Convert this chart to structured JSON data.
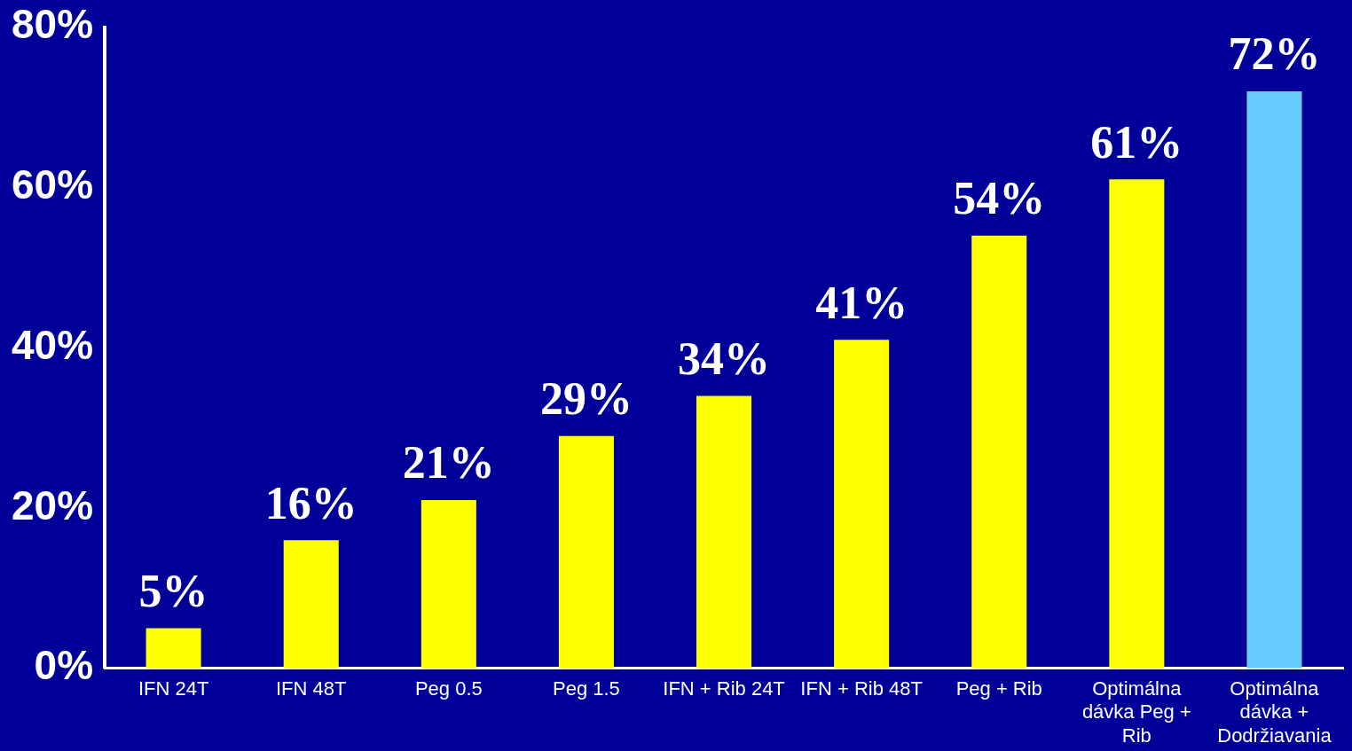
{
  "chart_data": {
    "type": "bar",
    "categories": [
      "IFN 24T",
      "IFN 48T",
      "Peg 0.5",
      "Peg 1.5",
      "IFN + Rib 24T",
      "IFN + Rib 48T",
      "Peg + Rib",
      "Optimálna dávka Peg + Rib",
      "Optimálna dávka + Dodržiavania"
    ],
    "values": [
      5,
      16,
      21,
      29,
      34,
      41,
      54,
      61,
      72
    ],
    "colors": [
      "#ffff00",
      "#ffff00",
      "#ffff00",
      "#ffff00",
      "#ffff00",
      "#ffff00",
      "#ffff00",
      "#ffff00",
      "#66ccff"
    ],
    "value_labels": [
      "5%",
      "16%",
      "21%",
      "29%",
      "34%",
      "41%",
      "54%",
      "61%",
      "72%"
    ],
    "ylim": [
      0,
      80
    ],
    "yticks": [
      {
        "value": 0,
        "label": "0%"
      },
      {
        "value": 20,
        "label": "20%"
      },
      {
        "value": 40,
        "label": "40%"
      },
      {
        "value": 60,
        "label": "60%"
      },
      {
        "value": 80,
        "label": "80%"
      }
    ],
    "grid": false,
    "legend": false
  }
}
